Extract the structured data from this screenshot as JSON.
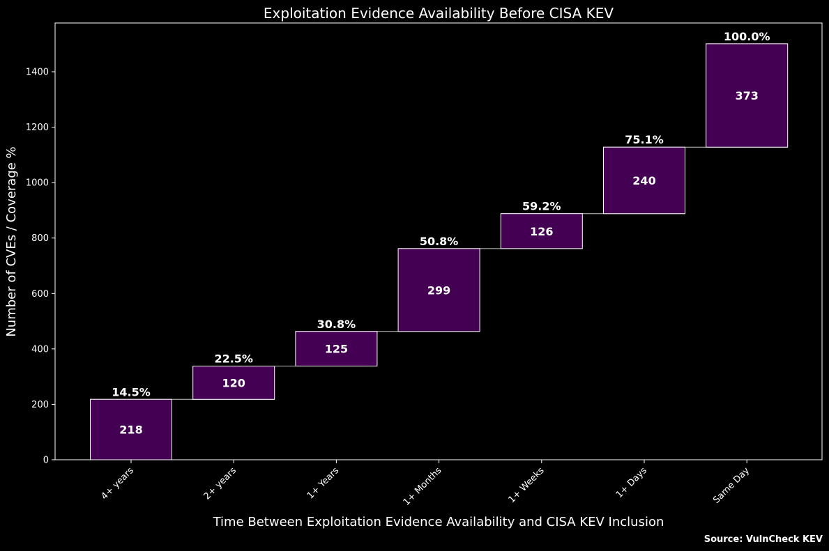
{
  "chart_data": {
    "type": "bar",
    "subtype": "waterfall",
    "title": "Exploitation Evidence Availability Before CISA KEV",
    "xlabel": "Time Between Exploitation Evidence Availability and CISA KEV Inclusion",
    "ylabel": "Number of CVEs / Coverage %",
    "categories": [
      "4+ years",
      "2+ years",
      "1+ Years",
      "1+ Months",
      "1+ Weeks",
      "1+ Days",
      "Same Day"
    ],
    "values": [
      218,
      120,
      125,
      299,
      126,
      240,
      373
    ],
    "cumulative": [
      218,
      338,
      463,
      762,
      888,
      1128,
      1501
    ],
    "coverage_labels": [
      "14.5%",
      "22.5%",
      "30.8%",
      "50.8%",
      "59.2%",
      "75.1%",
      "100.0%"
    ],
    "yticks": [
      0,
      200,
      400,
      600,
      800,
      1000,
      1200,
      1400
    ],
    "ylim": [
      0,
      1576
    ],
    "grid": false,
    "legend": "none",
    "colors": {
      "background": "#000000",
      "bar_fill": "#440154",
      "bar_edge": "#ffffff",
      "text": "#ffffff"
    }
  },
  "source_note": "Source: VulnCheck KEV"
}
